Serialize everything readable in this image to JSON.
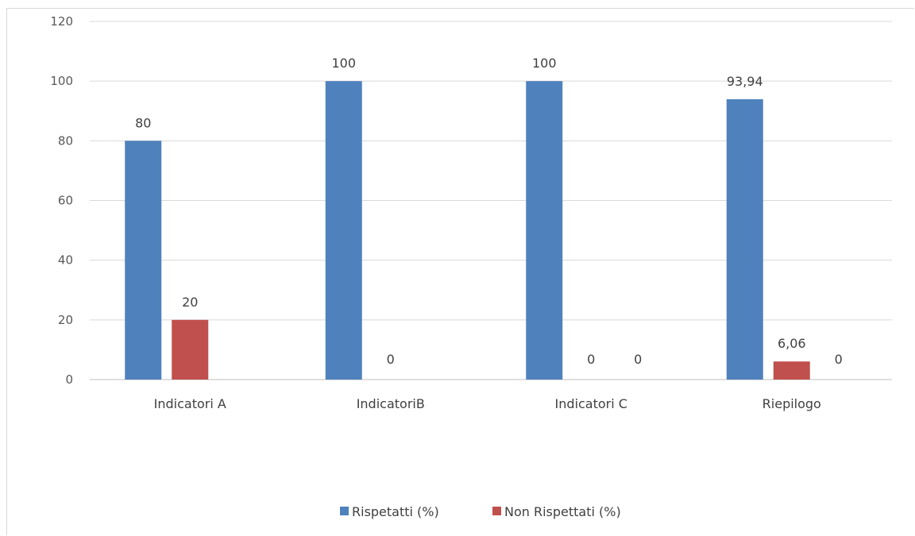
{
  "chart_data": {
    "type": "bar",
    "title": "",
    "xlabel": "",
    "ylabel": "",
    "categories": [
      "Indicatori A",
      "IndicatoriB",
      "Indicatori C",
      "Riepilogo"
    ],
    "series": [
      {
        "name": "Rispetatti (%)",
        "color": "#4f81bd",
        "values": [
          80,
          100,
          100,
          93.94
        ],
        "labels": [
          "80",
          "100",
          "100",
          "93,94"
        ]
      },
      {
        "name": "Non Rispettati (%)",
        "color": "#c0504d",
        "values": [
          20,
          0,
          0,
          6.06
        ],
        "labels": [
          "20",
          "0",
          "0",
          "6,06"
        ]
      },
      {
        "name": "",
        "color": "#9bbb59",
        "values": [
          null,
          null,
          0,
          0
        ],
        "labels": [
          "",
          "",
          "0",
          "0"
        ]
      }
    ],
    "ylim": [
      0,
      120
    ],
    "yticks": [
      0,
      20,
      40,
      60,
      80,
      100,
      120
    ],
    "grid": true,
    "legend_position": "bottom"
  }
}
